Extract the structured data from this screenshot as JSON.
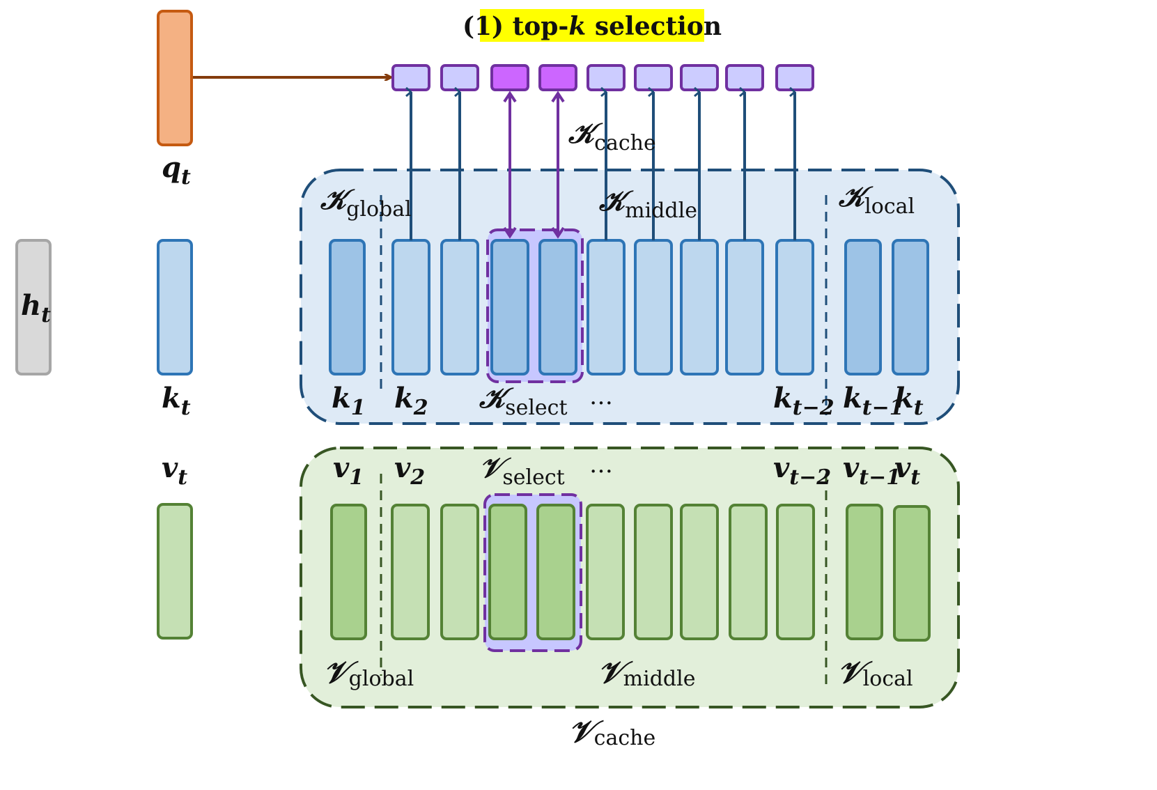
{
  "title": {
    "prefix": "(1) top-",
    "k": "k",
    "suffix": " selection",
    "highlight_color": "#ffff00"
  },
  "inputs": {
    "h": {
      "base": "h",
      "sub": "t"
    },
    "q": {
      "base": "q",
      "sub": "t"
    },
    "k": {
      "base": "k",
      "sub": "t"
    },
    "v": {
      "base": "v",
      "sub": "t"
    }
  },
  "key_cache": {
    "cache_label": {
      "base": "𝒦",
      "sub": "cache"
    },
    "global_label": {
      "base": "𝒦",
      "sub": "global"
    },
    "middle_label": {
      "base": "𝒦",
      "sub": "middle"
    },
    "local_label": {
      "base": "𝒦",
      "sub": "local"
    },
    "select_label": {
      "base": "𝒦",
      "sub": "select"
    },
    "ellipsis": "…",
    "token_labels": [
      {
        "base": "k",
        "sub": "1"
      },
      {
        "base": "k",
        "sub": "2"
      },
      {
        "base": "k",
        "sub": "t−2"
      },
      {
        "base": "k",
        "sub": "t−1"
      },
      {
        "base": "k",
        "sub": "t"
      }
    ]
  },
  "value_cache": {
    "cache_label": {
      "base": "𝒱",
      "sub": "cache"
    },
    "global_label": {
      "base": "𝒱",
      "sub": "global"
    },
    "middle_label": {
      "base": "𝒱",
      "sub": "middle"
    },
    "local_label": {
      "base": "𝒱",
      "sub": "local"
    },
    "select_label": {
      "base": "𝒱",
      "sub": "select"
    },
    "ellipsis": "…",
    "token_labels": [
      {
        "base": "v",
        "sub": "1"
      },
      {
        "base": "v",
        "sub": "2"
      },
      {
        "base": "v",
        "sub": "t−2"
      },
      {
        "base": "v",
        "sub": "t−1"
      },
      {
        "base": "v",
        "sub": "t"
      }
    ]
  },
  "score_row": {
    "count": 9,
    "selected": [
      2,
      3
    ]
  },
  "colors": {
    "h_fill": "#d9d9d9",
    "h_stroke": "#a6a6a6",
    "q_fill": "#f4b183",
    "q_stroke": "#c55a11",
    "k_fill": "#bdd7ee",
    "k_dark_fill": "#9dc3e6",
    "k_stroke": "#2e75b6",
    "v_fill": "#c5e0b4",
    "v_dark_fill": "#a9d18e",
    "v_stroke": "#548235",
    "score_fill": "#ccccff",
    "score_selected_fill": "#cc66ff",
    "score_stroke": "#7030a0",
    "key_cache_bg": "#deeaf6",
    "key_cache_stroke": "#1f4e79",
    "value_cache_bg": "#e2efda",
    "value_cache_stroke": "#375623",
    "select_fill": "#c7c7ff",
    "select_stroke": "#7030a0",
    "q_arrow": "#843c0c",
    "k_arrow": "#1f4e79",
    "select_arrow": "#7030a0"
  }
}
